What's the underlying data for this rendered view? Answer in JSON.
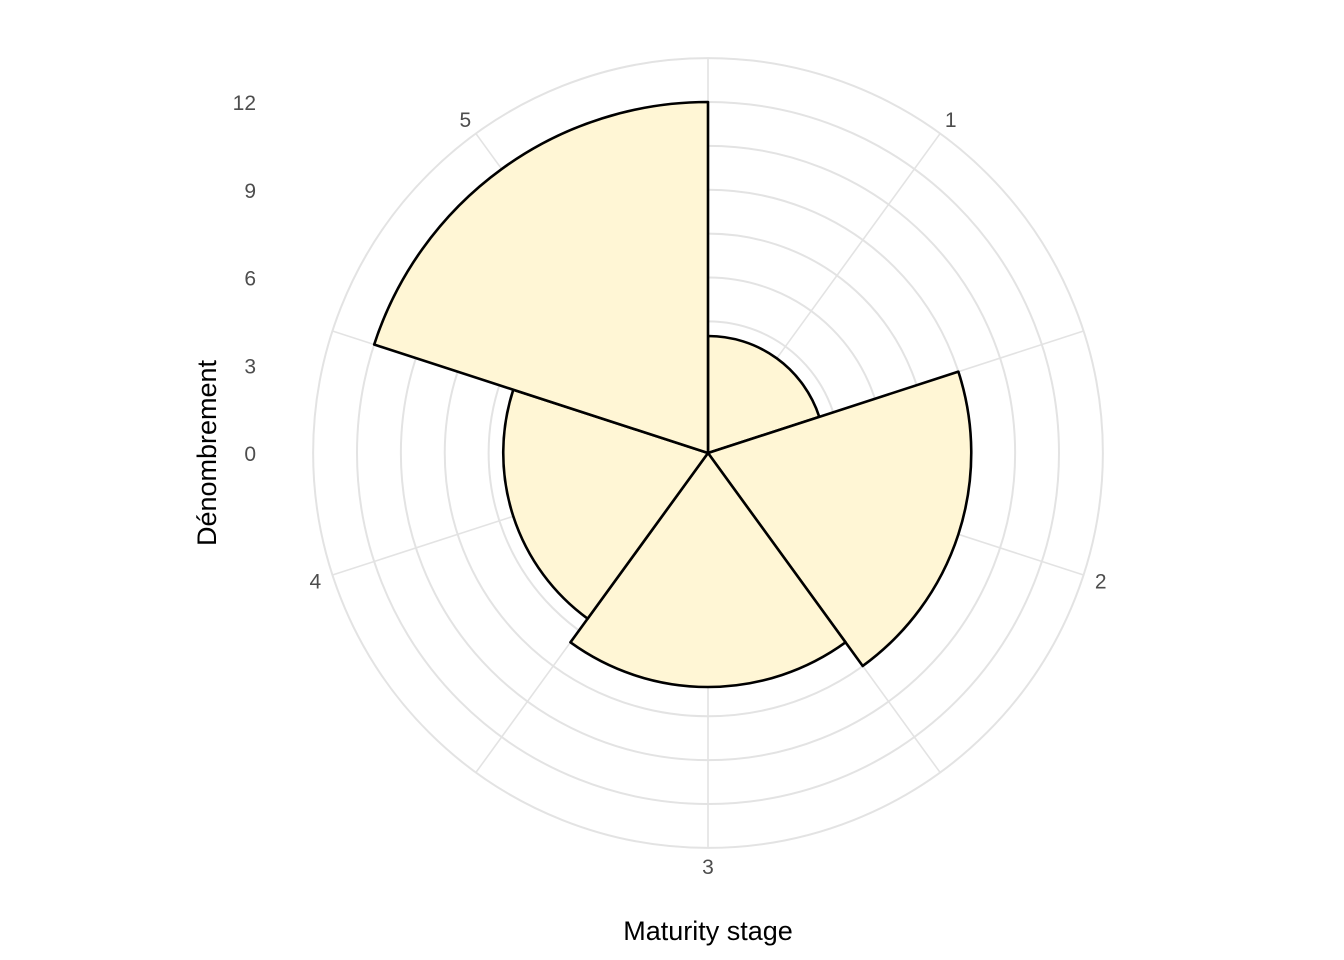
{
  "chart_data": {
    "type": "bar",
    "coord": "polar",
    "categories": [
      "1",
      "2",
      "3",
      "4",
      "5"
    ],
    "values": [
      4,
      9,
      8,
      7,
      12
    ],
    "xlabel": "Maturity stage",
    "ylabel": "Dénombrement",
    "r_ticks": [
      "0",
      "3",
      "6",
      "9",
      "12"
    ],
    "ylim": [
      0,
      12
    ],
    "grid": true,
    "colors": {
      "fill": "#fff6d5",
      "stroke": "#000000",
      "grid": "#e3e3e3"
    }
  }
}
